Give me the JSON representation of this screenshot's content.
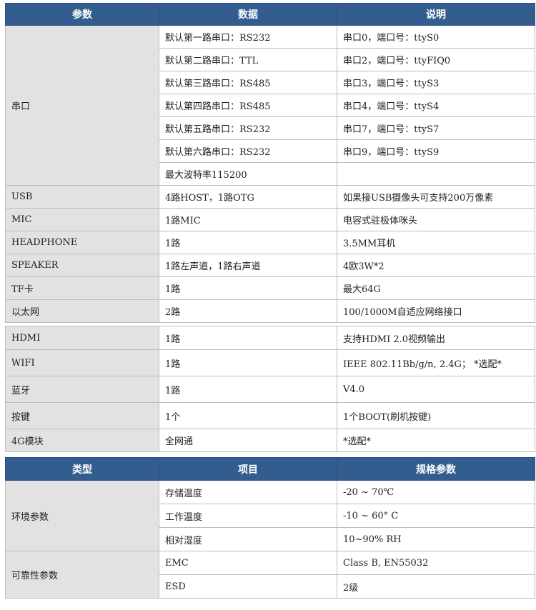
{
  "table1": {
    "headers": [
      "参数",
      "数据",
      "说明"
    ],
    "serial": {
      "label": "串口",
      "rows": [
        [
          "默认第一路串口：RS232",
          "串口0，端口号：ttyS0"
        ],
        [
          "默认第二路串口：TTL",
          "串口2，端口号：ttyFIQ0"
        ],
        [
          "默认第三路串口：RS485",
          "串口3，端口号：ttyS3"
        ],
        [
          "默认第四路串口：RS485",
          "串口4，端口号：ttyS4"
        ],
        [
          "默认第五路串口：RS232",
          "串口7，端口号：ttyS7"
        ],
        [
          "默认第六路串口：RS232",
          "串口9，端口号：ttyS9"
        ],
        [
          "最大波特率115200",
          ""
        ]
      ]
    },
    "rows": [
      [
        "USB",
        "4路HOST，1路OTG",
        "如果接USB摄像头可支持200万像素"
      ],
      [
        "MIC",
        "1路MIC",
        "电容式驻极体咪头"
      ],
      [
        "HEADPHONE",
        "1路",
        "3.5MM耳机"
      ],
      [
        "SPEAKER",
        "1路左声道，1路右声道",
        "4欧3W*2"
      ],
      [
        "TF卡",
        "1路",
        "最大64G"
      ],
      [
        "以太网",
        "2路",
        "100/1000M自适应网络接口"
      ]
    ]
  },
  "table2": {
    "rows": [
      [
        "HDMI",
        "1路",
        "支持HDMI 2.0视频输出"
      ],
      [
        "WIFI",
        "1路",
        "IEEE 802.11Bb/g/n, 2.4G； *选配*"
      ],
      [
        "蓝牙",
        "1路",
        "V4.0"
      ],
      [
        "按键",
        "1个",
        "1个BOOT(刷机按键)"
      ],
      [
        "4G模块",
        "全网通",
        "*选配*"
      ]
    ]
  },
  "table3": {
    "headers": [
      "类型",
      "项目",
      "规格参数"
    ],
    "groups": [
      {
        "label": "环境参数",
        "rows": [
          [
            "存储温度",
            "-20 ~ 70℃"
          ],
          [
            "工作温度",
            "-10 ~ 60° C"
          ],
          [
            "相对湿度",
            "10~90% RH"
          ]
        ]
      },
      {
        "label": "可靠性参数",
        "rows": [
          [
            "EMC",
            "Class B, EN55032"
          ],
          [
            "ESD",
            "2级"
          ]
        ]
      }
    ]
  }
}
